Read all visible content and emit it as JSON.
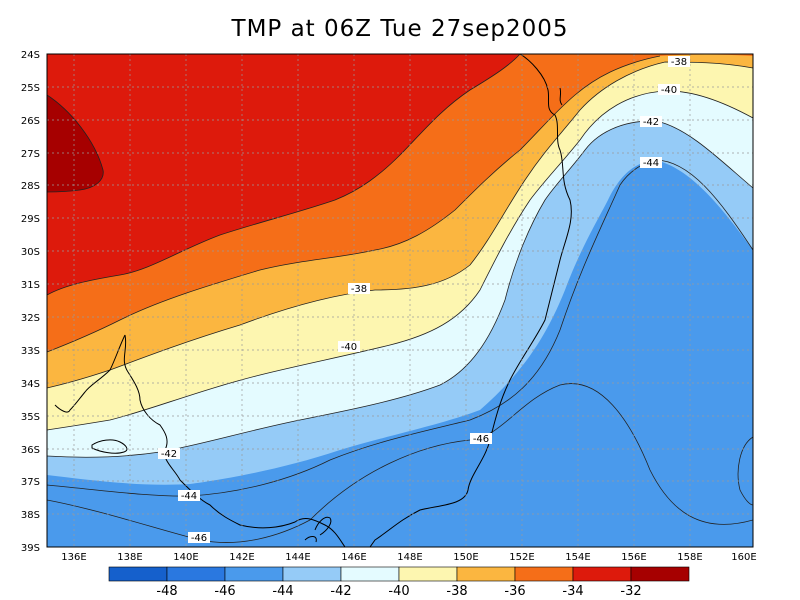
{
  "title": "TMP at 06Z Tue 27sep2005",
  "lat_labels": [
    "24S",
    "25S",
    "26S",
    "27S",
    "28S",
    "29S",
    "30S",
    "31S",
    "32S",
    "33S",
    "34S",
    "35S",
    "36S",
    "37S",
    "38S",
    "39S"
  ],
  "lon_labels": [
    "136E",
    "138E",
    "140E",
    "142E",
    "144E",
    "146E",
    "148E",
    "150E",
    "152E",
    "154E",
    "156E",
    "158E",
    "160E"
  ],
  "colorbar": {
    "labels": [
      "-48",
      "-46",
      "-44",
      "-42",
      "-40",
      "-38",
      "-36",
      "-34",
      "-32"
    ],
    "colors": [
      "#1560cc",
      "#2a78e0",
      "#4a9aec",
      "#95cbf7",
      "#e4fbff",
      "#fdf6b0",
      "#fbb640",
      "#f56e18",
      "#dd1a0c",
      "#a60000"
    ]
  },
  "contour_labels": [
    "-38",
    "-40",
    "-42",
    "-44",
    "-38",
    "-40",
    "-42",
    "-46",
    "-44",
    "-46"
  ]
}
